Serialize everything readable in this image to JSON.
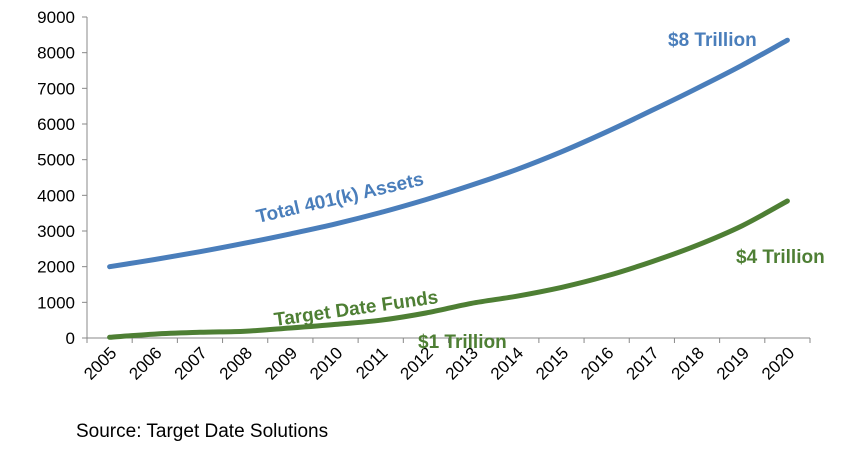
{
  "chart_data": {
    "type": "line",
    "title": "",
    "xlabel": "",
    "ylabel": "",
    "categories": [
      "2005",
      "2006",
      "2007",
      "2008",
      "2009",
      "2010",
      "2011",
      "2012",
      "2013",
      "2014",
      "2015",
      "2016",
      "2017",
      "2018",
      "2019",
      "2020"
    ],
    "ylim": [
      0,
      9000
    ],
    "yticks": [
      "0",
      "1000",
      "2000",
      "3000",
      "4000",
      "5000",
      "6000",
      "7000",
      "8000",
      "9000"
    ],
    "grid": false,
    "series": [
      {
        "name": "Total 401(k) Assets",
        "color": "#4A7EBB",
        "values": [
          2000,
          2200,
          2420,
          2660,
          2920,
          3200,
          3520,
          3880,
          4280,
          4720,
          5220,
          5780,
          6380,
          7000,
          7650,
          8350
        ]
      },
      {
        "name": "Target Date Funds",
        "color": "#4E7F34",
        "values": [
          20,
          110,
          160,
          190,
          280,
          380,
          500,
          700,
          970,
          1170,
          1420,
          1740,
          2140,
          2600,
          3150,
          3840
        ]
      }
    ],
    "annotations": {
      "total_end": "$8 Trillion",
      "tdf_end": "$4 Trillion",
      "tdf_mid": "$1 Trillion",
      "total_label": "Total 401(k) Assets",
      "tdf_label": "Target Date Funds"
    }
  },
  "source": "Source: Target Date Solutions"
}
